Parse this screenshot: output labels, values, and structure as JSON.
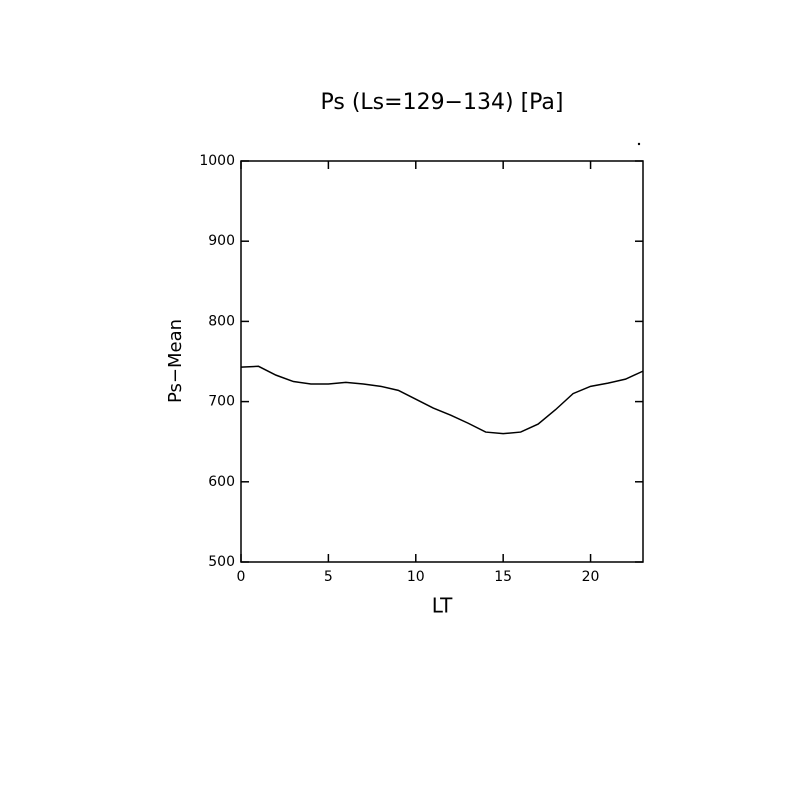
{
  "chart_data": {
    "type": "line",
    "title": "Ps (Ls=129−134) [Pa]",
    "x_label": "LT",
    "y_label": "Ps−Mean",
    "x": [
      0,
      1,
      2,
      3,
      4,
      5,
      6,
      7,
      8,
      9,
      10,
      11,
      12,
      13,
      14,
      15,
      16,
      17,
      18,
      19,
      20,
      21,
      22,
      23
    ],
    "values": [
      743,
      744,
      733,
      725,
      722,
      722,
      724,
      722,
      719,
      714,
      703,
      692,
      683,
      673,
      662,
      660,
      662,
      672,
      690,
      710,
      719,
      723,
      728,
      738
    ],
    "color": "#000000",
    "xlim": [
      0,
      23
    ],
    "xticks": [
      0,
      5,
      10,
      15,
      20
    ],
    "ylim": [
      500,
      1000
    ],
    "yticks": [
      500,
      600,
      700,
      800,
      900,
      1000
    ]
  }
}
